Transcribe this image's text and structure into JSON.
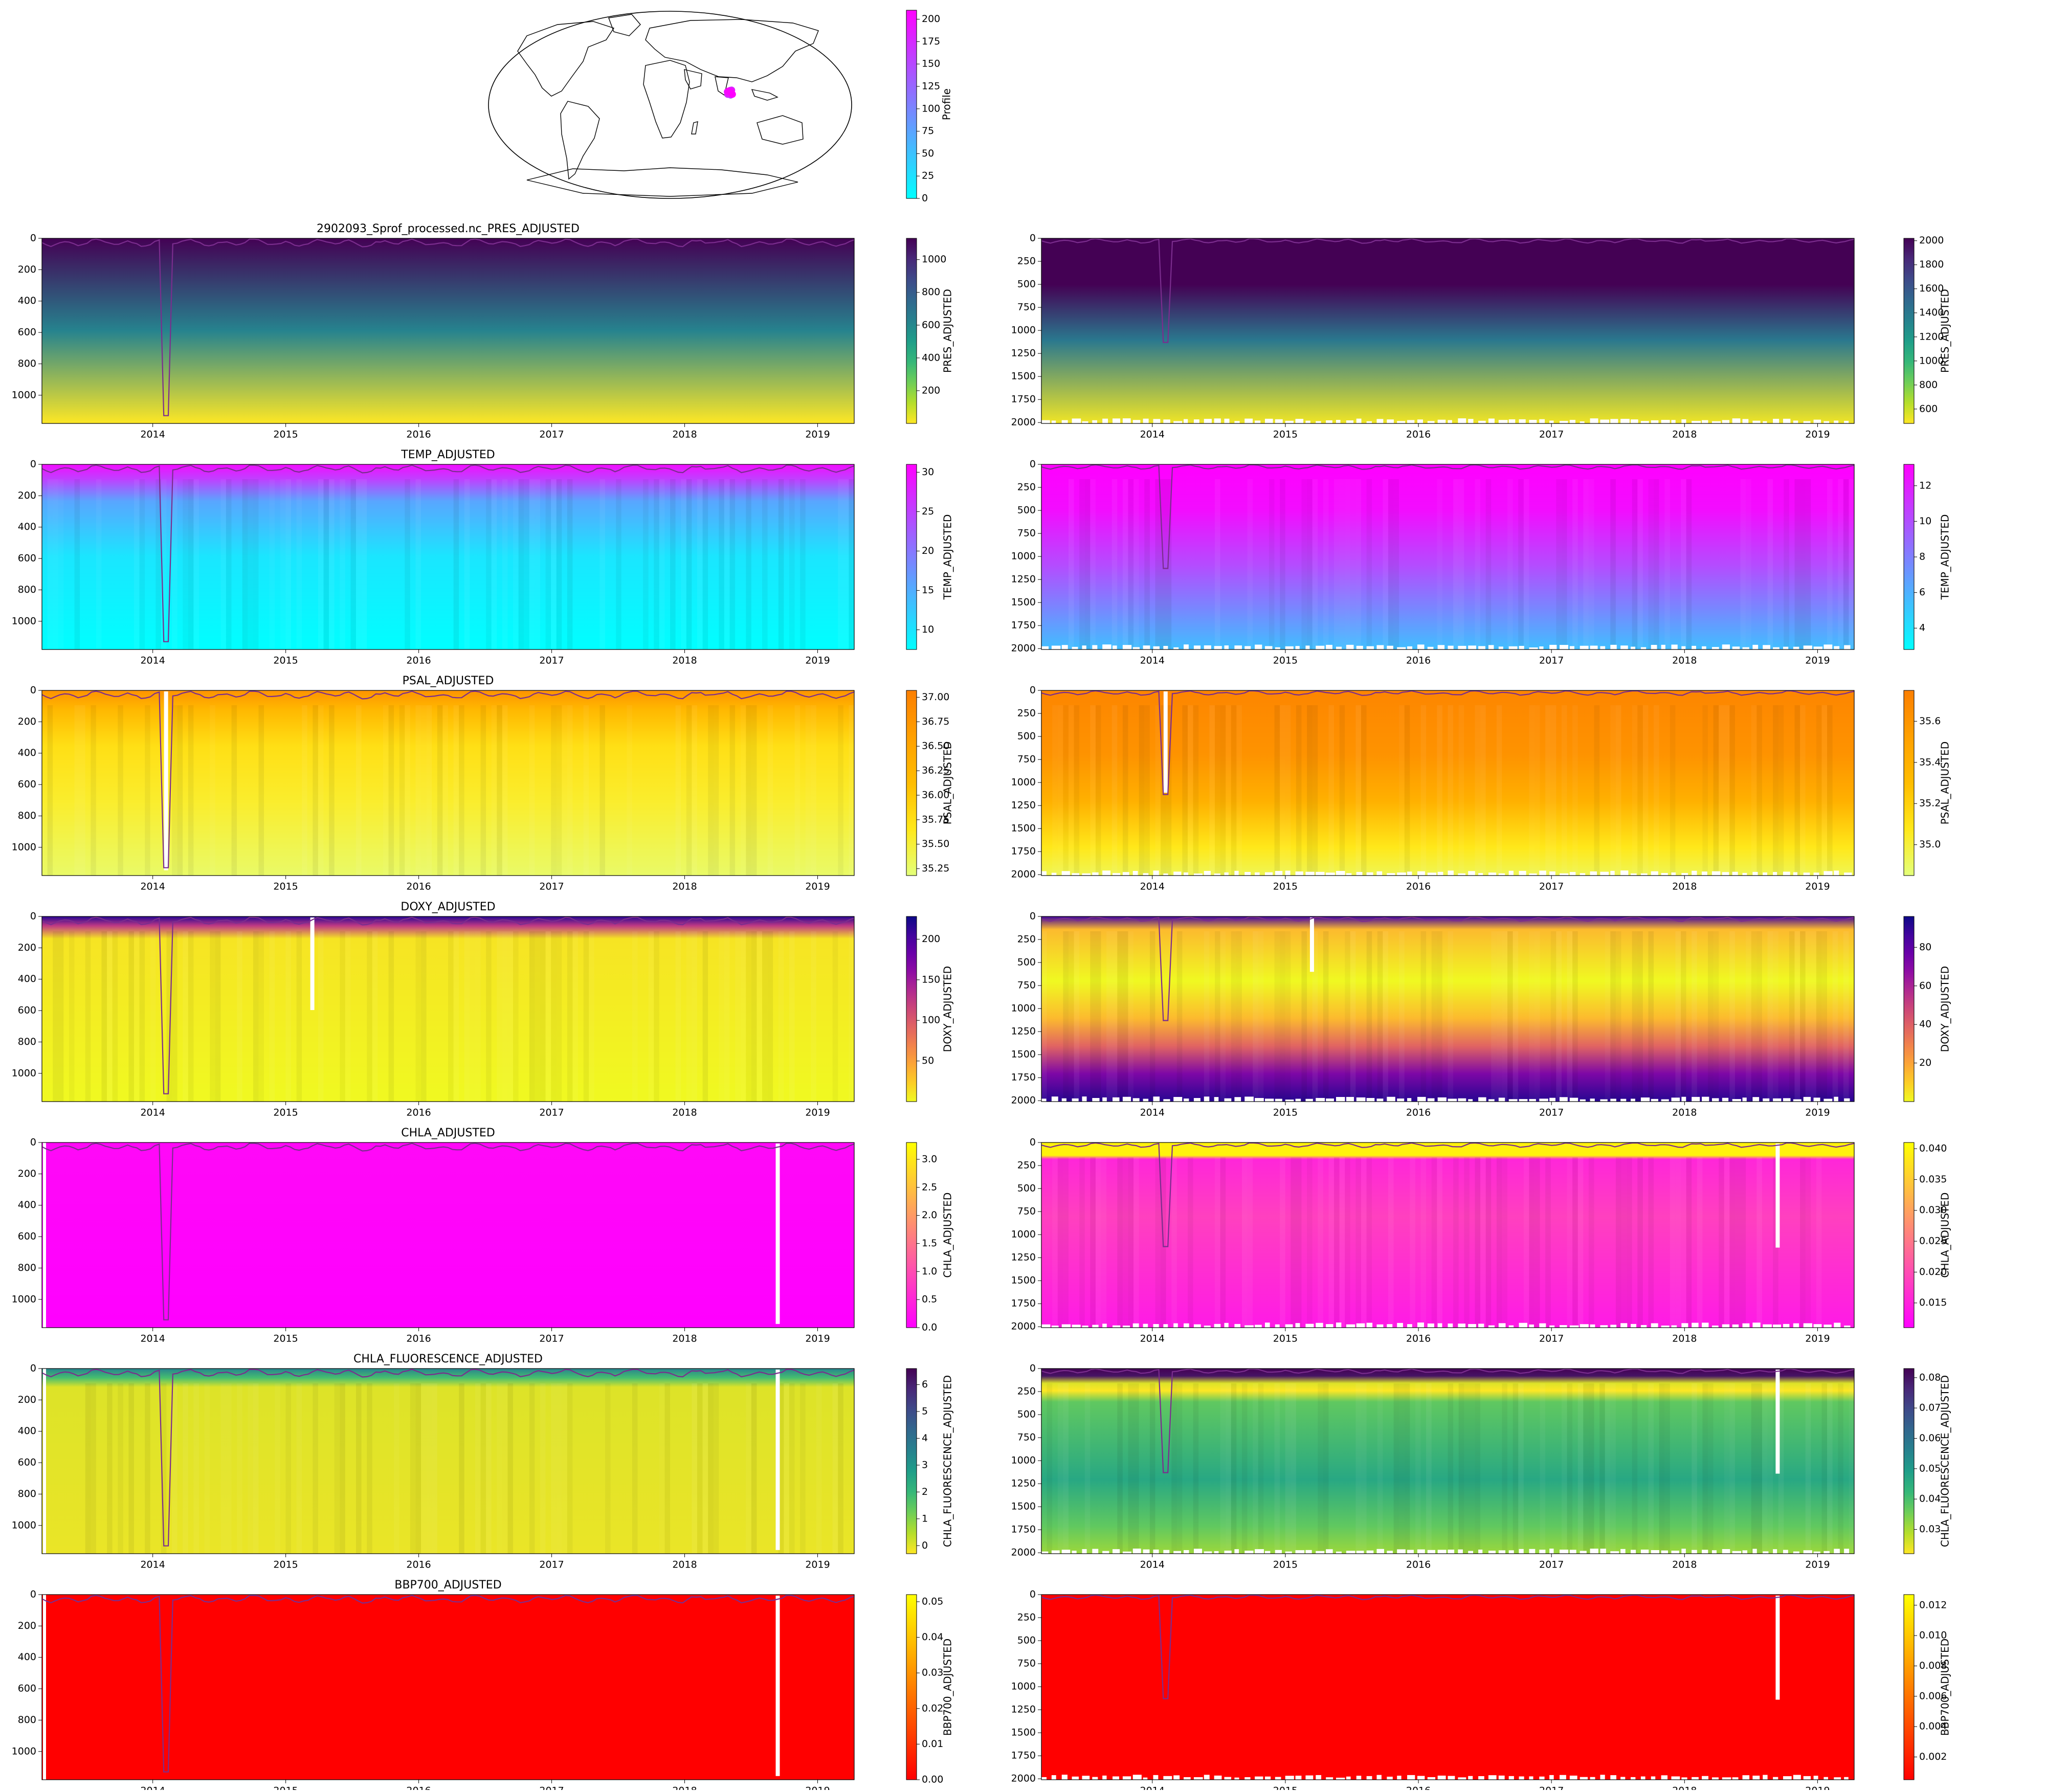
{
  "figure": {
    "map": {
      "colorbar_label": "Profile",
      "colorbar_ticks": [
        0,
        25,
        50,
        75,
        100,
        125,
        150,
        175,
        200
      ],
      "colorbar_range": [
        0,
        210
      ],
      "colormap": [
        "#00ffff",
        "#ff00ff"
      ],
      "marker_color": "#ff00ff",
      "float_location": {
        "lon": 62,
        "lat": 13
      },
      "type": "world map (Robinson projection)"
    },
    "years": [
      "2014",
      "2015",
      "2016",
      "2017",
      "2018",
      "2019"
    ],
    "mld_line_color": "#7b2d8e",
    "rows": [
      {
        "title": "2902093_Sprof_processed.nc_PRES_ADJUSTED",
        "variable": "PRES_ADJUSTED",
        "left": {
          "cmap": "viridis_r",
          "cb_ticks": [
            "200",
            "400",
            "600",
            "800",
            "1000"
          ],
          "cb_range": [
            0,
            1130
          ],
          "style": "pres"
        },
        "right": {
          "cmap": "viridis_r",
          "cb_ticks": [
            "600",
            "800",
            "1000",
            "1200",
            "1400",
            "1600",
            "1800",
            "2000"
          ],
          "cb_range": [
            480,
            2020
          ],
          "style": "pres"
        }
      },
      {
        "title": "TEMP_ADJUSTED",
        "variable": "TEMP_ADJUSTED",
        "left": {
          "cmap": "cool",
          "cb_ticks": [
            "10",
            "15",
            "20",
            "25",
            "30"
          ],
          "cb_range": [
            7.5,
            31
          ],
          "style": "temp_upper"
        },
        "right": {
          "cmap": "cool",
          "cb_ticks": [
            "4",
            "6",
            "8",
            "10",
            "12"
          ],
          "cb_range": [
            2.8,
            13.2
          ],
          "style": "temp_deep"
        }
      },
      {
        "title": "PSAL_ADJUSTED",
        "variable": "PSAL_ADJUSTED",
        "left": {
          "cmap": "Wistia",
          "cb_ticks": [
            "35.25",
            "35.50",
            "35.75",
            "36.00",
            "36.25",
            "36.50",
            "36.75",
            "37.00"
          ],
          "cb_range": [
            35.18,
            37.07
          ],
          "style": "psal_upper"
        },
        "right": {
          "cmap": "Wistia",
          "cb_ticks": [
            "35.0",
            "35.2",
            "35.4",
            "35.6"
          ],
          "cb_range": [
            34.85,
            35.75
          ],
          "style": "psal_deep"
        }
      },
      {
        "title": "DOXY_ADJUSTED",
        "variable": "DOXY_ADJUSTED",
        "left": {
          "cmap": "plasma_r",
          "cb_ticks": [
            "50",
            "100",
            "150",
            "200"
          ],
          "cb_range": [
            0,
            228
          ],
          "style": "doxy_upper"
        },
        "right": {
          "cmap": "plasma_r",
          "cb_ticks": [
            "20",
            "40",
            "60",
            "80"
          ],
          "cb_range": [
            0,
            96
          ],
          "style": "doxy_deep"
        }
      },
      {
        "title": "CHLA_ADJUSTED",
        "variable": "CHLA_ADJUSTED",
        "left": {
          "cmap": "spring",
          "cb_ticks": [
            "0.0",
            "0.5",
            "1.0",
            "1.5",
            "2.0",
            "2.5",
            "3.0"
          ],
          "cb_range": [
            0,
            3.3
          ],
          "style": "chla_upper"
        },
        "right": {
          "cmap": "spring",
          "cb_ticks": [
            "0.015",
            "0.020",
            "0.025",
            "0.030",
            "0.035",
            "0.040"
          ],
          "cb_range": [
            0.011,
            0.041
          ],
          "style": "chla_deep"
        }
      },
      {
        "title": "CHLA_FLUORESCENCE_ADJUSTED",
        "variable": "CHLA_FLUORESCENCE_ADJUSTED",
        "left": {
          "cmap": "viridis_r",
          "cb_ticks": [
            "0",
            "1",
            "2",
            "3",
            "4",
            "5",
            "6"
          ],
          "cb_range": [
            -0.3,
            6.6
          ],
          "style": "fluo_upper"
        },
        "right": {
          "cmap": "viridis_r",
          "cb_ticks": [
            "0.03",
            "0.04",
            "0.05",
            "0.06",
            "0.07",
            "0.08"
          ],
          "cb_range": [
            0.022,
            0.083
          ],
          "style": "fluo_deep"
        }
      },
      {
        "title": "BBP700_ADJUSTED",
        "variable": "BBP700_ADJUSTED",
        "left": {
          "cmap": "autumn",
          "cb_ticks": [
            "0.00",
            "0.01",
            "0.02",
            "0.03",
            "0.04",
            "0.05"
          ],
          "cb_range": [
            0,
            0.052
          ],
          "style": "bbp"
        },
        "right": {
          "cmap": "autumn",
          "cb_ticks": [
            "0.002",
            "0.004",
            "0.006",
            "0.008",
            "0.010",
            "0.012"
          ],
          "cb_range": [
            0.0005,
            0.0127
          ],
          "style": "bbp"
        }
      }
    ],
    "left_depth_ticks": [
      "0",
      "200",
      "400",
      "600",
      "800",
      "1000"
    ],
    "right_depth_ticks": [
      "0",
      "250",
      "500",
      "750",
      "1000",
      "1250",
      "1500",
      "1750",
      "2000"
    ],
    "axes": {
      "x_range": [
        "2013-03",
        "2019-04"
      ],
      "left_y_range": [
        0,
        1180
      ],
      "right_y_range": [
        0,
        2010
      ],
      "y_inverted": true
    }
  },
  "chart_data": [
    {
      "type": "heatmap",
      "title": "2902093_Sprof_processed.nc_PRES_ADJUSTED",
      "xlabel": "",
      "ylabel": "",
      "colorbar_label": "PRES_ADJUSTED",
      "x_ticks": [
        "2014",
        "2015",
        "2016",
        "2017",
        "2018",
        "2019"
      ],
      "y_ticks": [
        "0",
        "200",
        "400",
        "600",
        "800",
        "1000"
      ],
      "ylim": [
        1180,
        0
      ],
      "colorbar_ticks": [
        "200",
        "400",
        "600",
        "800",
        "1000"
      ]
    },
    {
      "type": "heatmap",
      "title": "",
      "colorbar_label": "PRES_ADJUSTED",
      "x_ticks": [
        "2014",
        "2015",
        "2016",
        "2017",
        "2018",
        "2019"
      ],
      "y_ticks": [
        "0",
        "250",
        "500",
        "750",
        "1000",
        "1250",
        "1500",
        "1750",
        "2000"
      ],
      "ylim": [
        2010,
        0
      ],
      "colorbar_ticks": [
        "600",
        "800",
        "1000",
        "1200",
        "1400",
        "1600",
        "1800",
        "2000"
      ]
    },
    {
      "type": "heatmap",
      "title": "TEMP_ADJUSTED",
      "colorbar_label": "TEMP_ADJUSTED",
      "ylim": [
        1180,
        0
      ],
      "colorbar_ticks": [
        "10",
        "15",
        "20",
        "25",
        "30"
      ]
    },
    {
      "type": "heatmap",
      "title": "",
      "colorbar_label": "TEMP_ADJUSTED",
      "ylim": [
        2010,
        0
      ],
      "colorbar_ticks": [
        "4",
        "6",
        "8",
        "10",
        "12"
      ]
    },
    {
      "type": "heatmap",
      "title": "PSAL_ADJUSTED",
      "colorbar_label": "PSAL_ADJUSTED",
      "ylim": [
        1180,
        0
      ],
      "colorbar_ticks": [
        "35.25",
        "35.50",
        "35.75",
        "36.00",
        "36.25",
        "36.50",
        "36.75",
        "37.00"
      ]
    },
    {
      "type": "heatmap",
      "title": "",
      "colorbar_label": "PSAL_ADJUSTED",
      "ylim": [
        2010,
        0
      ],
      "colorbar_ticks": [
        "35.0",
        "35.2",
        "35.4",
        "35.6"
      ]
    },
    {
      "type": "heatmap",
      "title": "DOXY_ADJUSTED",
      "colorbar_label": "DOXY_ADJUSTED",
      "ylim": [
        1180,
        0
      ],
      "colorbar_ticks": [
        "50",
        "100",
        "150",
        "200"
      ]
    },
    {
      "type": "heatmap",
      "title": "",
      "colorbar_label": "DOXY_ADJUSTED",
      "ylim": [
        2010,
        0
      ],
      "colorbar_ticks": [
        "20",
        "40",
        "60",
        "80"
      ]
    },
    {
      "type": "heatmap",
      "title": "CHLA_ADJUSTED",
      "colorbar_label": "CHLA_ADJUSTED",
      "ylim": [
        1180,
        0
      ],
      "colorbar_ticks": [
        "0.0",
        "0.5",
        "1.0",
        "1.5",
        "2.0",
        "2.5",
        "3.0"
      ]
    },
    {
      "type": "heatmap",
      "title": "",
      "colorbar_label": "CHLA_ADJUSTED",
      "ylim": [
        2010,
        0
      ],
      "colorbar_ticks": [
        "0.015",
        "0.020",
        "0.025",
        "0.030",
        "0.035",
        "0.040"
      ]
    },
    {
      "type": "heatmap",
      "title": "CHLA_FLUORESCENCE_ADJUSTED",
      "colorbar_label": "CHLA_FLUORESCENCE_ADJUSTED",
      "ylim": [
        1180,
        0
      ],
      "colorbar_ticks": [
        "0",
        "1",
        "2",
        "3",
        "4",
        "5",
        "6"
      ]
    },
    {
      "type": "heatmap",
      "title": "",
      "colorbar_label": "CHLA_FLUORESCENCE_ADJUSTED",
      "ylim": [
        2010,
        0
      ],
      "colorbar_ticks": [
        "0.03",
        "0.04",
        "0.05",
        "0.06",
        "0.07",
        "0.08"
      ]
    },
    {
      "type": "heatmap",
      "title": "BBP700_ADJUSTED",
      "colorbar_label": "BBP700_ADJUSTED",
      "ylim": [
        1180,
        0
      ],
      "colorbar_ticks": [
        "0.00",
        "0.01",
        "0.02",
        "0.03",
        "0.04",
        "0.05"
      ]
    },
    {
      "type": "heatmap",
      "title": "",
      "colorbar_label": "BBP700_ADJUSTED",
      "ylim": [
        2010,
        0
      ],
      "colorbar_ticks": [
        "0.002",
        "0.004",
        "0.006",
        "0.008",
        "0.010",
        "0.012"
      ]
    }
  ]
}
